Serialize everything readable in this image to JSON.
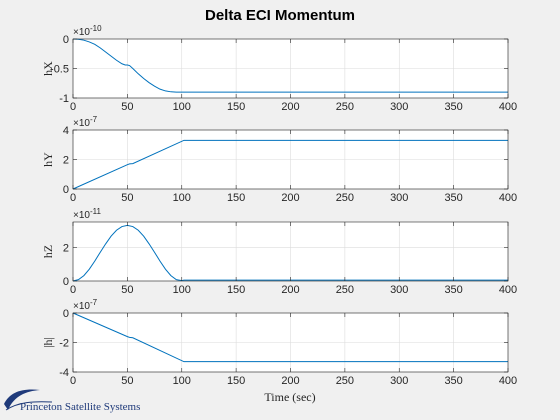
{
  "figure_title": "Delta ECI Momentum",
  "xlabel": "Time (sec)",
  "logo_text": "Princeton Satellite Systems",
  "colors": {
    "line": "#0072bd",
    "grid": "#dcdcdc",
    "axes_bg": "#ffffff",
    "page_bg": "#f0f0f0",
    "axis": "#262626",
    "logo": "#1f3a7a"
  },
  "chart_data": [
    {
      "type": "line",
      "ylabel": "hX",
      "exponent_label": "×10^-10",
      "xlim": [
        0,
        400
      ],
      "ylim": [
        -1,
        0
      ],
      "xticks": [
        0,
        50,
        100,
        150,
        200,
        250,
        300,
        350,
        400
      ],
      "yticks": [
        -1,
        -0.5,
        0
      ],
      "ytick_labels": [
        "-1",
        "-0.5",
        "0"
      ],
      "grid": true,
      "x": [
        0,
        5,
        10,
        15,
        20,
        25,
        30,
        35,
        40,
        45,
        48,
        50,
        52,
        55,
        60,
        65,
        70,
        75,
        80,
        85,
        90,
        95,
        100,
        102,
        110,
        150,
        200,
        250,
        300,
        350,
        400
      ],
      "y": [
        0,
        -0.005,
        -0.02,
        -0.05,
        -0.09,
        -0.15,
        -0.22,
        -0.29,
        -0.36,
        -0.42,
        -0.44,
        -0.44,
        -0.45,
        -0.5,
        -0.59,
        -0.67,
        -0.74,
        -0.8,
        -0.85,
        -0.88,
        -0.895,
        -0.9,
        -0.9,
        -0.9,
        -0.9,
        -0.9,
        -0.9,
        -0.9,
        -0.9,
        -0.9,
        -0.9
      ]
    },
    {
      "type": "line",
      "ylabel": "hY",
      "exponent_label": "×10^-7",
      "xlim": [
        0,
        400
      ],
      "ylim": [
        0,
        4
      ],
      "xticks": [
        0,
        50,
        100,
        150,
        200,
        250,
        300,
        350,
        400
      ],
      "yticks": [
        0,
        2,
        4
      ],
      "ytick_labels": [
        "0",
        "2",
        "4"
      ],
      "grid": true,
      "x": [
        0,
        50,
        52,
        55,
        102,
        150,
        200,
        250,
        300,
        350,
        400
      ],
      "y": [
        0,
        1.65,
        1.7,
        1.72,
        3.3,
        3.3,
        3.3,
        3.3,
        3.3,
        3.3,
        3.3
      ]
    },
    {
      "type": "line",
      "ylabel": "hZ",
      "exponent_label": "×10^-11",
      "xlim": [
        0,
        400
      ],
      "ylim": [
        0,
        3.5
      ],
      "xticks": [
        0,
        50,
        100,
        150,
        200,
        250,
        300,
        350,
        400
      ],
      "yticks": [
        0,
        2
      ],
      "ytick_labels": [
        "0",
        "2"
      ],
      "grid": true,
      "x": [
        0,
        5,
        10,
        15,
        20,
        25,
        30,
        35,
        40,
        45,
        50,
        55,
        60,
        65,
        70,
        75,
        80,
        85,
        90,
        95,
        100,
        102,
        110,
        150,
        200,
        250,
        300,
        350,
        400
      ],
      "y": [
        0,
        0.08,
        0.32,
        0.7,
        1.18,
        1.7,
        2.2,
        2.66,
        3.01,
        3.23,
        3.3,
        3.23,
        3.01,
        2.66,
        2.2,
        1.7,
        1.18,
        0.7,
        0.32,
        0.08,
        0.02,
        0.05,
        0.05,
        0.05,
        0.05,
        0.05,
        0.05,
        0.05,
        0.05
      ]
    },
    {
      "type": "line",
      "ylabel": "|h|",
      "exponent_label": "×10^-7",
      "xlim": [
        0,
        400
      ],
      "ylim": [
        -4,
        0
      ],
      "xticks": [
        0,
        50,
        100,
        150,
        200,
        250,
        300,
        350,
        400
      ],
      "yticks": [
        -4,
        -2,
        0
      ],
      "ytick_labels": [
        "-4",
        "-2",
        "0"
      ],
      "grid": true,
      "x": [
        0,
        50,
        52,
        55,
        102,
        150,
        200,
        250,
        300,
        350,
        400
      ],
      "y": [
        0,
        -1.6,
        -1.65,
        -1.68,
        -3.3,
        -3.3,
        -3.3,
        -3.3,
        -3.3,
        -3.3,
        -3.3
      ]
    }
  ]
}
